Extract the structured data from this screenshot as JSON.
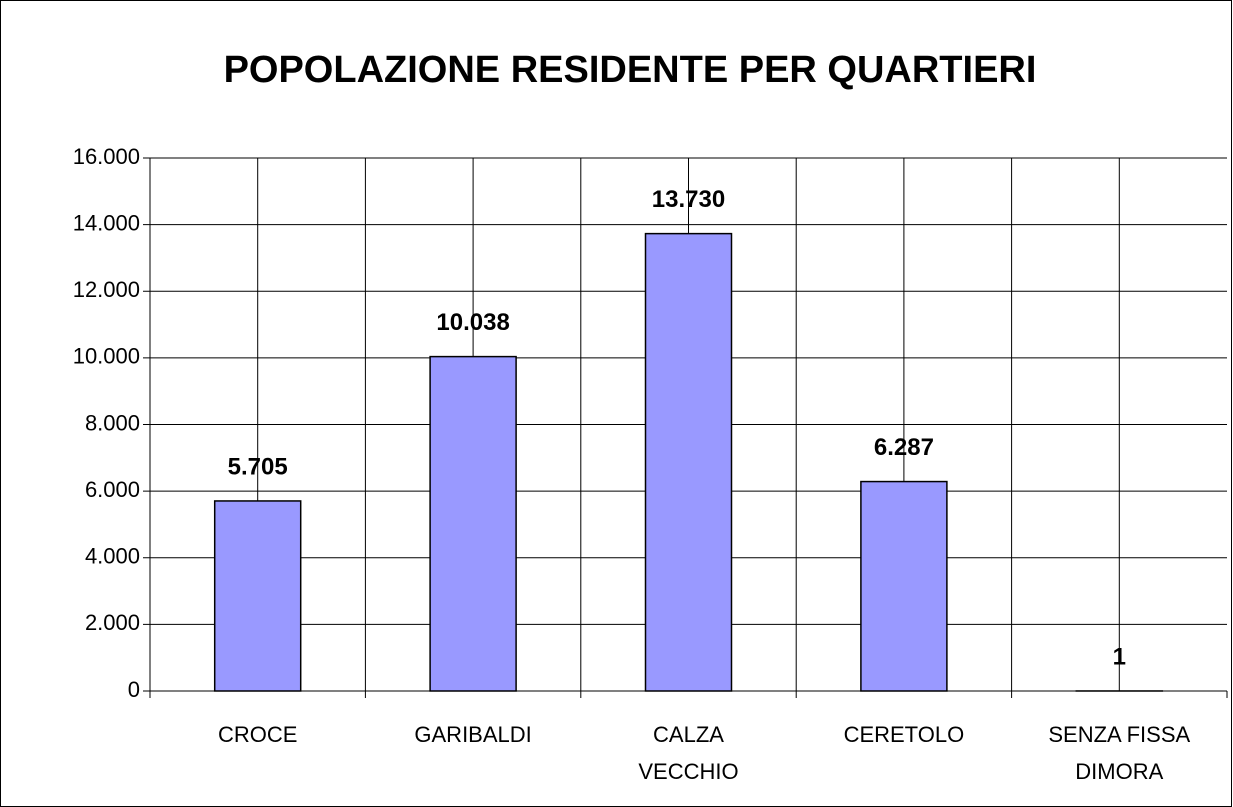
{
  "chart_data": {
    "type": "bar",
    "title": "POPOLAZIONE RESIDENTE PER QUARTIERI",
    "categories": [
      "CROCE",
      "GARIBALDI",
      "CALZA VECCHIO",
      "CERETOLO",
      "SENZA FISSA DIMORA"
    ],
    "values": [
      5705,
      10038,
      13730,
      6287,
      1
    ],
    "value_labels": [
      "5.705",
      "10.038",
      "13.730",
      "6.287",
      "1"
    ],
    "color": "#9999ff",
    "ylim": [
      0,
      16000
    ],
    "yticks": [
      {
        "value": 0,
        "label": "0"
      },
      {
        "value": 2000,
        "label": "2.000"
      },
      {
        "value": 4000,
        "label": "4.000"
      },
      {
        "value": 6000,
        "label": "6.000"
      },
      {
        "value": 8000,
        "label": "8.000"
      },
      {
        "value": 10000,
        "label": "10.000"
      },
      {
        "value": 12000,
        "label": "12.000"
      },
      {
        "value": 14000,
        "label": "14.000"
      },
      {
        "value": 16000,
        "label": "16.000"
      }
    ],
    "grid": true
  }
}
